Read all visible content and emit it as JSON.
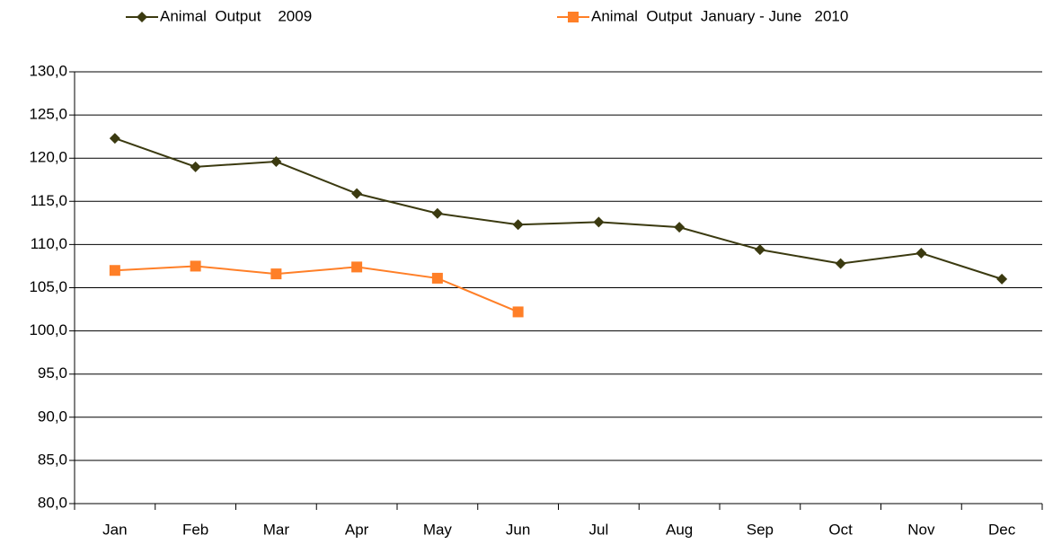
{
  "chart_data": {
    "type": "line",
    "categories": [
      "Jan",
      "Feb",
      "Mar",
      "Apr",
      "May",
      "Jun",
      "Jul",
      "Aug",
      "Sep",
      "Oct",
      "Nov",
      "Dec"
    ],
    "series": [
      {
        "name": "Animal  Output    2009",
        "color": "#3b3a10",
        "marker": "diamond",
        "values": [
          122.3,
          119.0,
          119.6,
          115.9,
          113.6,
          112.3,
          112.6,
          112.0,
          109.4,
          107.8,
          109.0,
          106.0
        ]
      },
      {
        "name": "Animal  Output  January - June   2010",
        "color": "#ff7f27",
        "marker": "square",
        "values": [
          107.0,
          107.5,
          106.6,
          107.4,
          106.1,
          102.2,
          null,
          null,
          null,
          null,
          null,
          null
        ]
      }
    ],
    "ylim": [
      80,
      130
    ],
    "yticks": [
      {
        "value": 80,
        "label": "80,0"
      },
      {
        "value": 85,
        "label": "85,0"
      },
      {
        "value": 90,
        "label": "90,0"
      },
      {
        "value": 95,
        "label": "95,0"
      },
      {
        "value": 100,
        "label": "100,0"
      },
      {
        "value": 105,
        "label": "105,0"
      },
      {
        "value": 110,
        "label": "110,0"
      },
      {
        "value": 115,
        "label": "115,0"
      },
      {
        "value": 120,
        "label": "120,0"
      },
      {
        "value": 125,
        "label": "125,0"
      },
      {
        "value": 130,
        "label": "130,0"
      }
    ],
    "grid": true,
    "legend": "top"
  }
}
